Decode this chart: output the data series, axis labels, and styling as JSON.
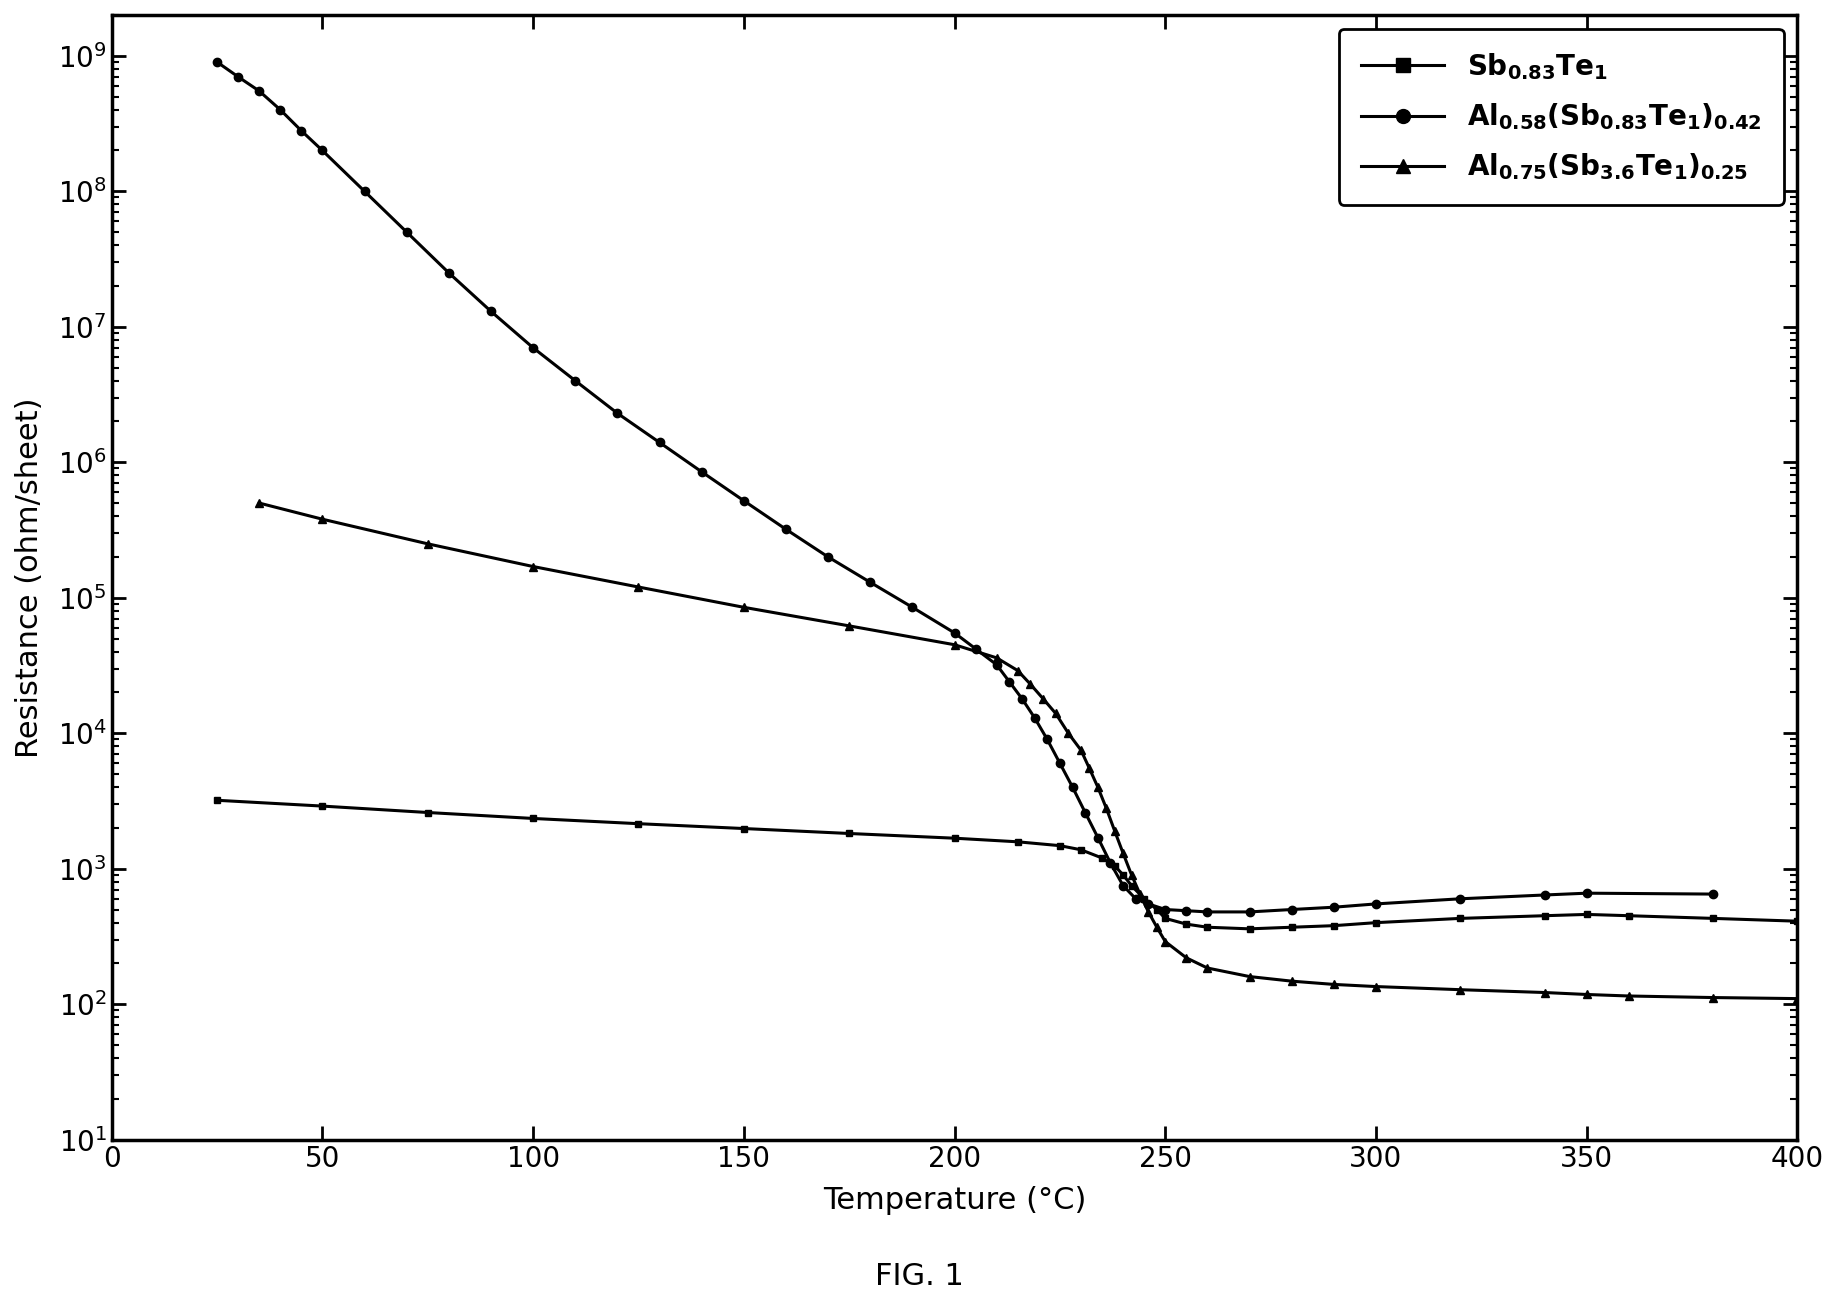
{
  "title": "",
  "xlabel": "Temperature (°C)",
  "ylabel": "Resistance (ohm/sheet)",
  "fig_caption": "FIG. 1",
  "xlim": [
    0,
    400
  ],
  "ylim_log": [
    10,
    2000000000.0
  ],
  "background_color": "#ffffff",
  "line_color": "#000000",
  "series1_x": [
    25,
    50,
    75,
    100,
    125,
    150,
    175,
    200,
    215,
    225,
    230,
    235,
    238,
    240,
    242,
    245,
    248,
    250,
    255,
    260,
    270,
    280,
    290,
    300,
    320,
    340,
    350,
    360,
    380,
    400
  ],
  "series1_y": [
    3200,
    2900,
    2600,
    2350,
    2150,
    1980,
    1820,
    1680,
    1580,
    1480,
    1380,
    1200,
    1050,
    900,
    750,
    600,
    500,
    430,
    390,
    370,
    360,
    370,
    380,
    400,
    430,
    450,
    460,
    450,
    430,
    410
  ],
  "series2_x": [
    25,
    30,
    35,
    40,
    45,
    50,
    60,
    70,
    80,
    90,
    100,
    110,
    120,
    130,
    140,
    150,
    160,
    170,
    180,
    190,
    200,
    205,
    210,
    213,
    216,
    219,
    222,
    225,
    228,
    231,
    234,
    237,
    240,
    243,
    246,
    250,
    255,
    260,
    270,
    280,
    290,
    300,
    320,
    340,
    350,
    380
  ],
  "series2_y": [
    900000000.0,
    700000000.0,
    550000000.0,
    400000000.0,
    280000000.0,
    200000000.0,
    100000000.0,
    50000000.0,
    25000000.0,
    13000000.0,
    7000000.0,
    4000000.0,
    2300000.0,
    1400000.0,
    850000.0,
    520000.0,
    320000.0,
    200000.0,
    130000.0,
    85000.0,
    55000.0,
    42000.0,
    32000.0,
    24000.0,
    18000.0,
    13000.0,
    9000,
    6000,
    4000,
    2600,
    1700,
    1100,
    750,
    600,
    550,
    500,
    490,
    480,
    480,
    500,
    520,
    550,
    600,
    640,
    660,
    650
  ],
  "series3_x": [
    35,
    50,
    75,
    100,
    125,
    150,
    175,
    200,
    210,
    215,
    218,
    221,
    224,
    227,
    230,
    232,
    234,
    236,
    238,
    240,
    242,
    244,
    246,
    248,
    250,
    255,
    260,
    270,
    280,
    290,
    300,
    320,
    340,
    350,
    360,
    380,
    400
  ],
  "series3_y": [
    500000.0,
    380000.0,
    250000.0,
    170000.0,
    120000.0,
    85000.0,
    62000.0,
    45000.0,
    36000.0,
    29000.0,
    23000.0,
    18000.0,
    14000.0,
    10000.0,
    7500,
    5500,
    4000,
    2800,
    1900,
    1300,
    900,
    650,
    480,
    370,
    290,
    220,
    185,
    160,
    148,
    140,
    135,
    128,
    122,
    118,
    115,
    112,
    110
  ]
}
